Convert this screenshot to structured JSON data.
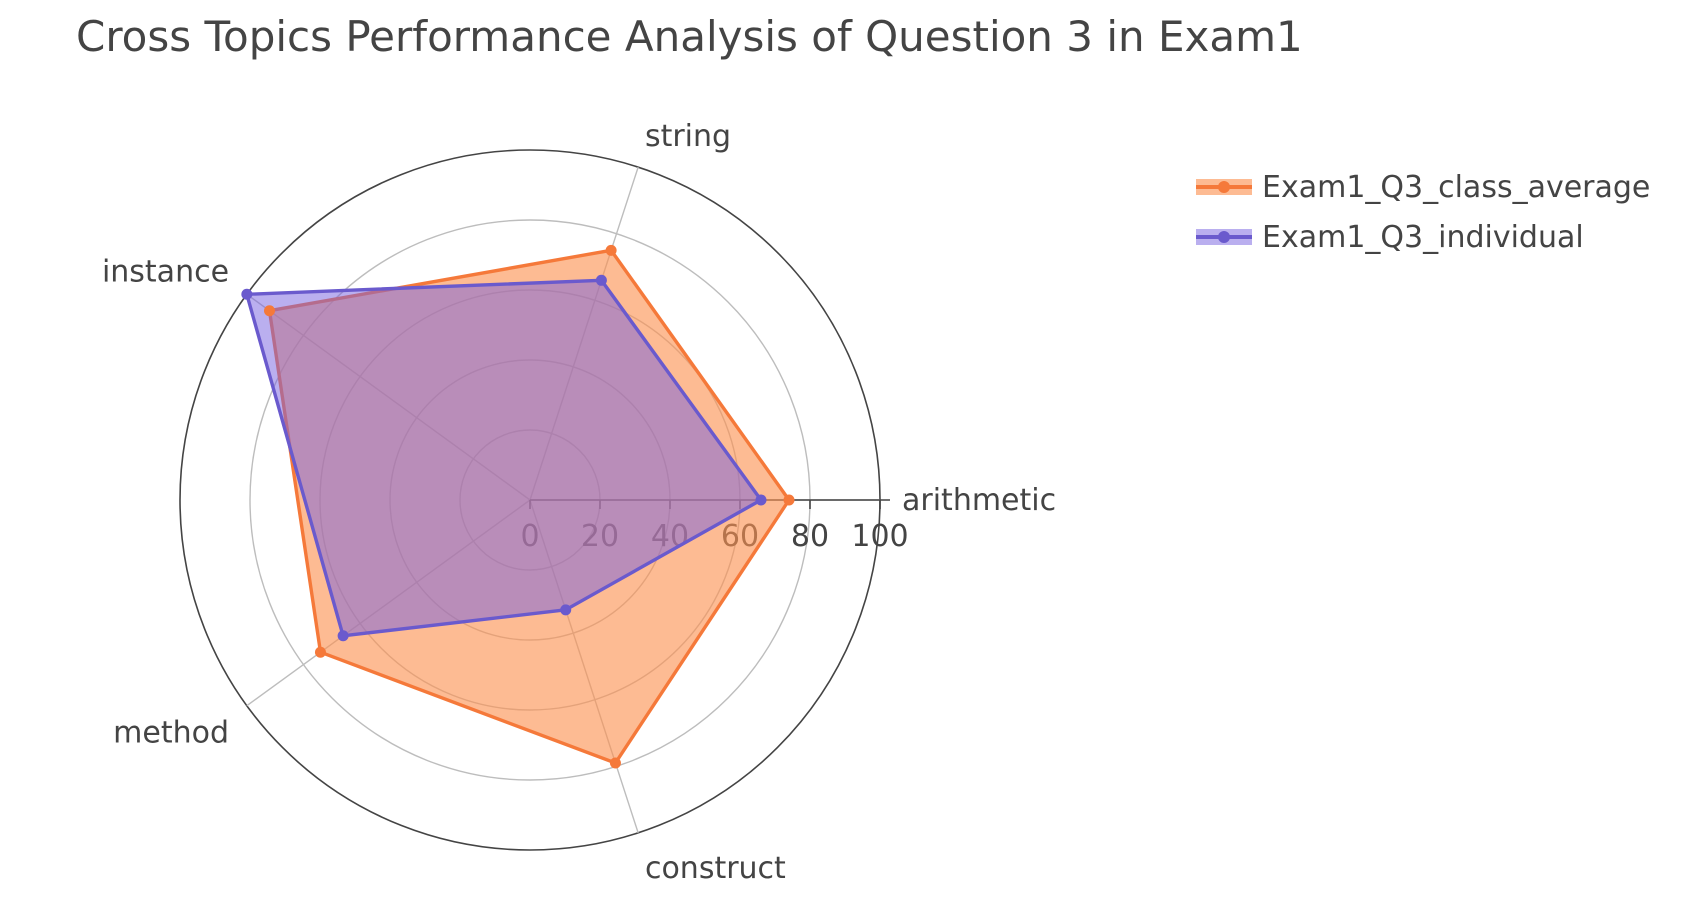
{
  "chart_data": {
    "type": "radar",
    "title": "Cross Topics Performance Analysis of Question 3 in Exam1",
    "axes": [
      "arithmetic",
      "string",
      "instance",
      "method",
      "construct"
    ],
    "radial_range": [
      0,
      100
    ],
    "radial_ticks": [
      "0",
      "20",
      "40",
      "60",
      "80",
      "100"
    ],
    "grid": true,
    "legend_position": "top-right",
    "series": [
      {
        "name": "Exam1_Q3_class_average",
        "values": [
          74,
          75,
          92,
          74,
          79
        ],
        "color": "#f5793a",
        "fill": "rgba(252,146,81,0.62)"
      },
      {
        "name": "Exam1_Q3_individual",
        "values": [
          66,
          66,
          100,
          66,
          33
        ],
        "color": "#6a5acd",
        "fill": "rgba(118,96,224,0.5)"
      }
    ]
  }
}
